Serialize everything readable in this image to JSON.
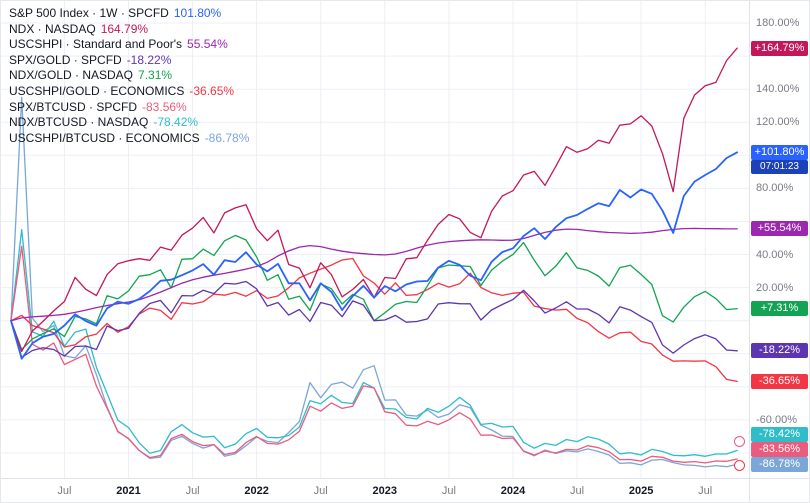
{
  "ui": {
    "background": "#FFFFFF",
    "grid": "#ECEFF5",
    "axis_text": "#787B86",
    "axis_border": "#E0E3EB",
    "year_text": "#131722",
    "countdown_bg": "#1C41B8",
    "marker_colors": [
      "#EA5C7E",
      "#F23645"
    ]
  },
  "legend": {
    "rows": [
      {
        "label": "S&P 500 Index · 1W · SPCFD",
        "value": "101.80%",
        "color": "#2962FF"
      },
      {
        "label": "NDX · NASDAQ",
        "value": "164.79%",
        "color": "#C2185B"
      },
      {
        "label": "USCSHPI · Standard and Poor's",
        "value": "55.54%",
        "color": "#9C27B0"
      },
      {
        "label": "SPX/GOLD · SPCFD",
        "value": "-18.22%",
        "color": "#5E35B1"
      },
      {
        "label": "NDX/GOLD · NASDAQ",
        "value": "7.31%",
        "color": "#12A452"
      },
      {
        "label": "USCSHPI/GOLD · ECONOMICS",
        "value": "-36.65%",
        "color": "#F23645"
      },
      {
        "label": "SPX/BTCUSD · SPCFD",
        "value": "-83.56%",
        "color": "#EA5C7E"
      },
      {
        "label": "NDX/BTCUSD · NASDAQ",
        "value": "-78.42%",
        "color": "#2EBDC9"
      },
      {
        "label": "USCSHPI/BTCUSD · ECONOMICS",
        "value": "-86.78%",
        "color": "#7BA6D8"
      }
    ]
  },
  "price_axis": {
    "labels": [
      {
        "text": "180.00%",
        "value": 180
      },
      {
        "text": "140.00%",
        "value": 140
      },
      {
        "text": "120.00%",
        "value": 120
      },
      {
        "text": "80.00%",
        "value": 80
      },
      {
        "text": "40.00%",
        "value": 40
      },
      {
        "text": "20.00%",
        "value": 20
      },
      {
        "text": "-60.00%",
        "value": -60
      }
    ],
    "badges": [
      {
        "text": "+164.79%",
        "value": 164.79,
        "color": "#C2185B"
      },
      {
        "text": "+101.80%",
        "value": 101.8,
        "color": "#2962FF",
        "countdown": "07:01:23"
      },
      {
        "text": "+55.54%",
        "value": 55.54,
        "color": "#9C27B0"
      },
      {
        "text": "+7.31%",
        "value": 7.31,
        "color": "#12A452"
      },
      {
        "text": "-18.22%",
        "value": -18.22,
        "color": "#5E35B1"
      },
      {
        "text": "-36.65%",
        "value": -36.65,
        "color": "#F23645"
      },
      {
        "text": "-78.42%",
        "value": -78.42,
        "color": "#2EBDC9"
      },
      {
        "text": "-83.56%",
        "value": -83.56,
        "color": "#EA5C7E"
      },
      {
        "text": "-86.78%",
        "value": -86.78,
        "color": "#7BA6D8"
      }
    ]
  },
  "time_axis": {
    "ticks": [
      {
        "label": "Jul",
        "major": false
      },
      {
        "label": "2021",
        "major": true
      },
      {
        "label": "Jul",
        "major": false
      },
      {
        "label": "2022",
        "major": true
      },
      {
        "label": "Jul",
        "major": false
      },
      {
        "label": "2023",
        "major": true
      },
      {
        "label": "Jul",
        "major": false
      },
      {
        "label": "2024",
        "major": true
      },
      {
        "label": "Jul",
        "major": false
      },
      {
        "label": "2025",
        "major": true
      },
      {
        "label": "Jul",
        "major": false
      }
    ]
  },
  "chart_data": {
    "type": "line",
    "interval": "1W",
    "unit": "percent_change",
    "ylim": [
      -95,
      193
    ],
    "grid": true,
    "legend_position": "top-left",
    "x": [
      "2020-02",
      "2020-03",
      "2020-04",
      "2020-05",
      "2020-06",
      "2020-07",
      "2020-08",
      "2020-09",
      "2020-10",
      "2020-11",
      "2020-12",
      "2021-01",
      "2021-02",
      "2021-03",
      "2021-04",
      "2021-05",
      "2021-06",
      "2021-07",
      "2021-08",
      "2021-09",
      "2021-10",
      "2021-11",
      "2021-12",
      "2022-01",
      "2022-02",
      "2022-03",
      "2022-04",
      "2022-05",
      "2022-06",
      "2022-07",
      "2022-08",
      "2022-09",
      "2022-10",
      "2022-11",
      "2022-12",
      "2023-01",
      "2023-02",
      "2023-03",
      "2023-04",
      "2023-05",
      "2023-06",
      "2023-07",
      "2023-08",
      "2023-09",
      "2023-10",
      "2023-11",
      "2023-12",
      "2024-01",
      "2024-02",
      "2024-03",
      "2024-04",
      "2024-05",
      "2024-06",
      "2024-07",
      "2024-08",
      "2024-09",
      "2024-10",
      "2024-11",
      "2024-12",
      "2025-01",
      "2025-02",
      "2025-03",
      "2025-04",
      "2025-05",
      "2025-06",
      "2025-07",
      "2025-08",
      "2025-09",
      "2025-10"
    ],
    "series": [
      {
        "name": "S&P 500 Index (SPCFD)",
        "color": "#2962FF",
        "last": 101.8,
        "values": [
          0,
          -23,
          -13.6,
          -9.7,
          -8,
          -2.9,
          3.9,
          -0.2,
          -3,
          7.5,
          11.5,
          10.2,
          13.1,
          17.9,
          24.1,
          24.8,
          27.5,
          30.4,
          34.2,
          27.8,
          36.6,
          35.5,
          41.4,
          34,
          29.8,
          34.4,
          22.6,
          22.6,
          12.3,
          22.6,
          17.4,
          6.4,
          14.9,
          21.1,
          13.9,
          21,
          17.8,
          21.9,
          23.7,
          24,
          32.1,
          36.2,
          33.8,
          27.2,
          24.4,
          35.6,
          41.5,
          43.8,
          51.2,
          55.9,
          49.4,
          56.6,
          62,
          63.9,
          67.6,
          71,
          69.3,
          79,
          74.5,
          79.3,
          76.7,
          66.5,
          53,
          75.4,
          84.1,
          88.1,
          91.7,
          98.4,
          101.8
        ]
      },
      {
        "name": "NDX (NASDAQ)",
        "color": "#C2185B",
        "last": 164.79,
        "values": [
          0,
          -18.6,
          -6.2,
          -0.4,
          5.9,
          11.6,
          26.2,
          19,
          15.2,
          27.9,
          34.4,
          36.3,
          37.5,
          36.5,
          44.5,
          42.7,
          51.7,
          56,
          62.4,
          53.1,
          65.2,
          68.2,
          70.1,
          55.6,
          48.4,
          54.7,
          34,
          31.8,
          19.9,
          35,
          27.9,
          14.4,
          18.9,
          24.9,
          14,
          26.1,
          25.5,
          37.4,
          38.1,
          48.6,
          58.2,
          64.2,
          61.6,
          53.4,
          50.2,
          66.2,
          75.4,
          78.6,
          88.1,
          90.3,
          81.8,
          93.2,
          105.2,
          101.8,
          104,
          109.1,
          107.3,
          118.2,
          119,
          123.9,
          117.7,
          101,
          78,
          122.4,
          136.4,
          142,
          144.1,
          157.3,
          164.8
        ]
      },
      {
        "name": "USCSHPI (Standard and Poor's)",
        "color": "#9C27B0",
        "last": 55.54,
        "values": [
          0,
          1.7,
          2.3,
          2.7,
          3.2,
          3.9,
          5,
          6.4,
          7.9,
          9.2,
          10.3,
          11.3,
          12.7,
          14.9,
          17.3,
          20,
          22.7,
          24.8,
          26.3,
          27.5,
          28.6,
          29.9,
          31.2,
          32.8,
          35.4,
          39.2,
          42.2,
          44.5,
          45.4,
          44.8,
          43.3,
          42,
          41.1,
          40.5,
          40,
          39.8,
          40.3,
          41.9,
          43.9,
          45.7,
          47,
          47.8,
          48.3,
          48.7,
          48.9,
          48.8,
          48.6,
          48.7,
          49.7,
          51.6,
          53.4,
          54.7,
          55.4,
          55.2,
          54.5,
          53.8,
          53.3,
          53.1,
          52.8,
          53,
          53.5,
          54.5,
          55.2,
          55.7,
          55.8,
          55.7,
          55.6,
          55.5,
          55.5
        ]
      },
      {
        "name": "SPX/GOLD (SPCFD)",
        "color": "#5E35B1",
        "last": -18.22,
        "values": [
          0,
          -22.2,
          -18,
          -16.4,
          -17.4,
          -21.4,
          -15.6,
          -15.3,
          -17.4,
          -3.2,
          -6,
          -4.6,
          4.4,
          10.4,
          12.3,
          4.8,
          15.2,
          15,
          18.4,
          16.4,
          22.6,
          22.2,
          23.7,
          19.3,
          8.8,
          11,
          3.4,
          6.8,
          -0.5,
          11,
          9.4,
          2.4,
          12,
          9.5,
          0,
          0.4,
          3.2,
          -0.9,
          -0.5,
          1.1,
          10.1,
          10.9,
          10.3,
          10.2,
          0.4,
          6.5,
          9.8,
          12.8,
          18.4,
          11.9,
          4.6,
          7.7,
          11.4,
          7.1,
          7.1,
          3.8,
          -1.3,
          8.4,
          6.4,
          2.5,
          -1,
          -14.7,
          -19.6,
          -14.7,
          -10.8,
          -8.5,
          -11,
          -17.7,
          -18.2
        ]
      },
      {
        "name": "NDX/GOLD (NASDAQ)",
        "color": "#12A452",
        "last": 7.31,
        "values": [
          0,
          -17.4,
          -11,
          -7.8,
          -4.9,
          -9.6,
          2.6,
          1,
          -1.9,
          15.1,
          13.2,
          18,
          26.9,
          27.8,
          30.8,
          19.8,
          37.1,
          37.5,
          43.3,
          39.4,
          48.3,
          51.6,
          48.8,
          38.6,
          24.4,
          27.8,
          13,
          14.8,
          6.2,
          22.3,
          19.3,
          10.1,
          15.9,
          13,
          0,
          4.7,
          9.9,
          11.6,
          11,
          21.1,
          31.9,
          33.7,
          33.2,
          32.8,
          21.2,
          30.6,
          36,
          40.1,
          47.2,
          36.5,
          27.2,
          32.9,
          41.1,
          31.9,
          30.4,
          27,
          20.9,
          32.1,
          33.5,
          28,
          21.9,
          3,
          -0.8,
          8.2,
          14.5,
          17.7,
          13.3,
          6.7,
          7.3
        ]
      },
      {
        "name": "USCSHPI/GOLD (ECONOMICS)",
        "color": "#F23645",
        "last": -36.65,
        "values": [
          0,
          3.2,
          -2.9,
          -5,
          -7.3,
          -15.9,
          -14.6,
          -9.7,
          -8.1,
          -1.7,
          -7,
          -3.6,
          4,
          7.6,
          6.2,
          0.8,
          10.9,
          10.1,
          11.4,
          16.1,
          15.4,
          17.1,
          14.8,
          18.2,
          13.5,
          15,
          19.9,
          25.9,
          28.7,
          31.2,
          33.6,
          36.7,
          37.6,
          27.1,
          22.8,
          16,
          22.9,
          15.3,
          15.7,
          18.8,
          22.6,
          20.3,
          22.3,
          28.7,
          20.1,
          16.9,
          15.3,
          16.6,
          17.2,
          8.8,
          7.4,
          6.4,
          6.9,
          1.4,
          -1.2,
          -6.6,
          -10.6,
          -7.3,
          -6.9,
          -12.5,
          -14.1,
          -20.8,
          -24.5,
          -24.3,
          -24.5,
          -24.3,
          -27.8,
          -35.5,
          -36.7
        ]
      },
      {
        "name": "SPX/BTCUSD (SPCFD)",
        "color": "#EA5C7E",
        "last": -83.56,
        "values": [
          0,
          45,
          -14.2,
          -17.8,
          -13.4,
          -26.5,
          -23.4,
          -20.4,
          -39.5,
          -52.9,
          -66.9,
          -71.4,
          -78.5,
          -82.8,
          -81.5,
          -71.3,
          -68.7,
          -73.1,
          -75.5,
          -74.9,
          -80.9,
          -79.6,
          -73.7,
          -70,
          -74.2,
          -74.6,
          -72,
          -66.8,
          -51.7,
          -54.7,
          -49.7,
          -53,
          -51.7,
          -39.4,
          -40.7,
          -55.1,
          -56.2,
          -63.2,
          -63.6,
          -60.8,
          -62.8,
          -59.9,
          -55.6,
          -59.4,
          -69.2,
          -69.1,
          -71.2,
          -70.9,
          -78.8,
          -81.2,
          -78.8,
          -80,
          -77.8,
          -78.2,
          -75.6,
          -76.8,
          -79.2,
          -84,
          -83.9,
          -84.9,
          -82,
          -82.6,
          -84.9,
          -85.6,
          -85.2,
          -86,
          -84.8,
          -85,
          -83.6
        ]
      },
      {
        "name": "NDX/BTCUSD (NASDAQ)",
        "color": "#2EBDC9",
        "last": -78.42,
        "values": [
          0,
          55,
          -6.8,
          -9.5,
          -0.3,
          -15.5,
          -6.9,
          -5.1,
          -28.1,
          -44,
          -60.1,
          -64.6,
          -73.8,
          -80.1,
          -78.5,
          -67.1,
          -62.8,
          -67.8,
          -70.4,
          -69.9,
          -76.8,
          -74.6,
          -68.3,
          -65.2,
          -70.5,
          -70.8,
          -69.4,
          -64.3,
          -48.4,
          -50.2,
          -45.1,
          -49.4,
          -50.1,
          -37.4,
          -40.7,
          -53.1,
          -53.4,
          -58.5,
          -59.4,
          -53,
          -55.4,
          -51.7,
          -46.4,
          -51.1,
          -62.7,
          -62.1,
          -64.3,
          -63.9,
          -73.6,
          -77.1,
          -74.2,
          -75.4,
          -71.8,
          -73.1,
          -70.2,
          -71.6,
          -74.6,
          -80.5,
          -79.8,
          -81.2,
          -77.8,
          -79.1,
          -81.4,
          -81.7,
          -81,
          -82,
          -80.6,
          -80.6,
          -78.4
        ]
      },
      {
        "name": "USCSHPI/BTCUSD (ECONOMICS)",
        "color": "#7BA6D8",
        "last": -86.78,
        "values": [
          0,
          135,
          1.6,
          -6.6,
          -2.9,
          -21.3,
          -22.5,
          -15.2,
          -32.7,
          -52.2,
          -67.3,
          -71.1,
          -78.5,
          -83.2,
          -82.5,
          -72.4,
          -69.9,
          -74.2,
          -77,
          -75,
          -82,
          -80.4,
          -75.6,
          -70.3,
          -73,
          -73.7,
          -67.6,
          -60.9,
          -37.4,
          -46.6,
          -38.5,
          -37.1,
          -40.8,
          -29.6,
          -27.2,
          -48,
          -47.9,
          -57.1,
          -57.7,
          -54,
          -58.5,
          -56.5,
          -50.8,
          -52.6,
          -63.1,
          -66.1,
          -69.8,
          -70,
          -79,
          -81.7,
          -78.2,
          -80.3,
          -78.7,
          -79.3,
          -77.5,
          -79.1,
          -81.2,
          -86.3,
          -85.9,
          -87.2,
          -84.3,
          -83.9,
          -85.8,
          -87.2,
          -87.5,
          -88.4,
          -87.6,
          -88.3,
          -86.8
        ]
      }
    ]
  }
}
